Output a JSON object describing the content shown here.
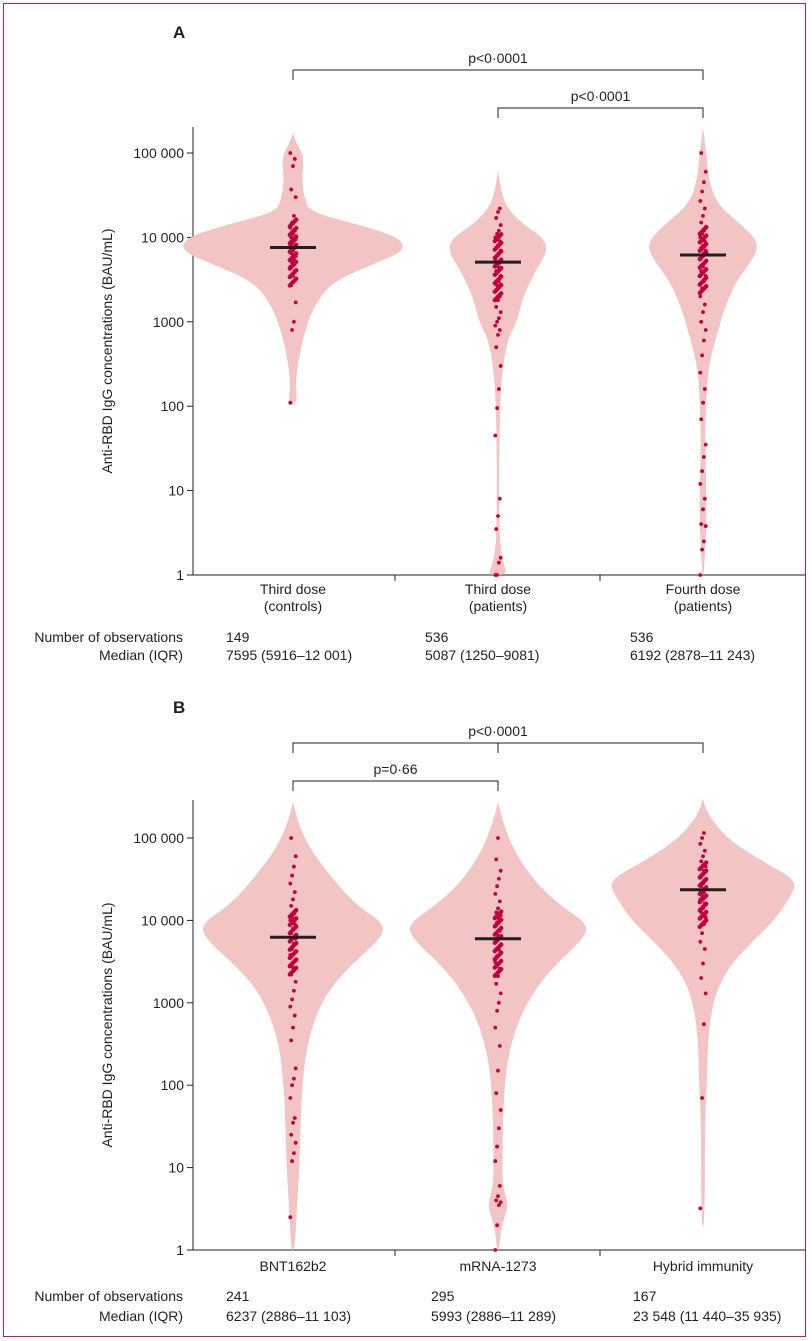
{
  "colors": {
    "violin_fill": "#f2c4c4",
    "dot_color": "#c0003c",
    "median_bar": "#231f20",
    "frame_border": "#c4185a"
  },
  "chart_data": [
    {
      "type": "violin",
      "panel_label": "A",
      "ylabel": "Anti-RBD IgG concentrations (BAU/mL)",
      "y_scale": "log",
      "ylim": [
        1,
        300000
      ],
      "yticks": [
        1,
        10,
        100,
        1000,
        10000,
        100000
      ],
      "ytick_labels": [
        "1",
        "10",
        "100",
        "1000",
        "10 000",
        "100 000"
      ],
      "grid": false,
      "row_labels": [
        "Number of observations",
        "Median (IQR)"
      ],
      "groups": [
        {
          "label_line1": "Third dose",
          "label_line2": "(controls)",
          "n": "149",
          "median_iqr": "7595 (5916–12 001)",
          "median": 7595,
          "violin": [
            [
              110,
              0.04
            ],
            [
              200,
              0.02
            ],
            [
              600,
              0.08
            ],
            [
              1500,
              0.18
            ],
            [
              3000,
              0.35
            ],
            [
              5000,
              0.75
            ],
            [
              7000,
              1.0
            ],
            [
              10000,
              0.95
            ],
            [
              14000,
              0.6
            ],
            [
              20000,
              0.15
            ],
            [
              30000,
              0.1
            ],
            [
              50000,
              0.08
            ],
            [
              90000,
              0.1
            ],
            [
              140000,
              0.02
            ]
          ],
          "points": [
            110,
            800,
            1000,
            1700,
            2700,
            3500,
            4000,
            4500,
            5000,
            5500,
            6000,
            6500,
            7000,
            7500,
            8000,
            8500,
            9000,
            9500,
            10000,
            11000,
            12000,
            13000,
            15000,
            18000,
            30000,
            37000,
            70000,
            85000,
            100000
          ]
        },
        {
          "label_line1": "Third dose",
          "label_line2": "(patients)",
          "n": "536",
          "median_iqr": "5087 (1250–9081)",
          "median": 5087,
          "violin": [
            [
              1,
              0.2
            ],
            [
              1.5,
              0.08
            ],
            [
              3,
              0.03
            ],
            [
              10,
              0.02
            ],
            [
              50,
              0.03
            ],
            [
              200,
              0.06
            ],
            [
              600,
              0.18
            ],
            [
              1000,
              0.38
            ],
            [
              2000,
              0.5
            ],
            [
              4000,
              0.75
            ],
            [
              7000,
              1.0
            ],
            [
              10000,
              0.9
            ],
            [
              15000,
              0.45
            ],
            [
              25000,
              0.12
            ],
            [
              50000,
              0.02
            ]
          ],
          "points": [
            1,
            1,
            1.4,
            1.6,
            3.5,
            5,
            8,
            45,
            95,
            160,
            300,
            500,
            700,
            800,
            900,
            1000,
            1100,
            1300,
            1500,
            1800,
            2000,
            2300,
            2700,
            3000,
            3500,
            4000,
            4500,
            5000,
            5500,
            6000,
            6500,
            7000,
            7500,
            8000,
            9000,
            10000,
            11000,
            12000,
            14000,
            17000,
            20000,
            22000
          ]
        },
        {
          "label_line1": "Fourth dose",
          "label_line2": "(patients)",
          "n": "536",
          "median_iqr": "6192 (2878–11 243)",
          "median": 6192,
          "violin": [
            [
              1,
              0.01
            ],
            [
              2,
              0.04
            ],
            [
              4,
              0.06
            ],
            [
              10,
              0.06
            ],
            [
              30,
              0.04
            ],
            [
              100,
              0.05
            ],
            [
              300,
              0.1
            ],
            [
              700,
              0.25
            ],
            [
              1500,
              0.4
            ],
            [
              3000,
              0.6
            ],
            [
              6000,
              0.95
            ],
            [
              9000,
              1.0
            ],
            [
              14000,
              0.7
            ],
            [
              25000,
              0.25
            ],
            [
              50000,
              0.1
            ],
            [
              100000,
              0.06
            ],
            [
              160000,
              0.02
            ]
          ],
          "points": [
            1,
            2,
            2.5,
            3.8,
            4,
            6,
            8,
            12,
            17,
            25,
            35,
            70,
            110,
            160,
            250,
            400,
            600,
            800,
            1000,
            1300,
            1600,
            2000,
            2500,
            3000,
            3500,
            4000,
            4500,
            5000,
            5500,
            6000,
            6500,
            7000,
            7500,
            8000,
            9000,
            10000,
            11000,
            12000,
            13000,
            15000,
            18000,
            22000,
            27000,
            35000,
            45000,
            60000,
            100000
          ]
        }
      ],
      "comparisons": [
        {
          "text": "p<0·0001",
          "from": 0,
          "to": 2,
          "level": 2
        },
        {
          "text": "p<0·0001",
          "from": 1,
          "to": 2,
          "level": 1
        }
      ]
    },
    {
      "type": "violin",
      "panel_label": "B",
      "ylabel": "Anti-RBD IgG concentrations (BAU/mL)",
      "y_scale": "log",
      "ylim": [
        1,
        300000
      ],
      "yticks": [
        1,
        10,
        100,
        1000,
        10000,
        100000
      ],
      "ytick_labels": [
        "1",
        "10",
        "100",
        "1000",
        "10 000",
        "100 000"
      ],
      "grid": false,
      "row_labels": [
        "Number of observations",
        "Median (IQR)"
      ],
      "groups": [
        {
          "label_line1": "BNT162b2",
          "label_line2": "",
          "n": "241",
          "median_iqr": "6237 (2886–11 103)",
          "median": 6237,
          "violin": [
            [
              1,
              0.02
            ],
            [
              3,
              0.04
            ],
            [
              10,
              0.07
            ],
            [
              30,
              0.08
            ],
            [
              100,
              0.1
            ],
            [
              300,
              0.15
            ],
            [
              700,
              0.25
            ],
            [
              1500,
              0.4
            ],
            [
              3000,
              0.65
            ],
            [
              6000,
              0.95
            ],
            [
              9000,
              1.0
            ],
            [
              15000,
              0.7
            ],
            [
              30000,
              0.45
            ],
            [
              70000,
              0.2
            ],
            [
              130000,
              0.08
            ],
            [
              220000,
              0.02
            ]
          ],
          "points": [
            2.5,
            12,
            15,
            20,
            25,
            35,
            40,
            70,
            100,
            120,
            160,
            350,
            500,
            700,
            900,
            1100,
            1400,
            1800,
            2200,
            2700,
            3200,
            3800,
            4500,
            5200,
            6000,
            7000,
            8000,
            9000,
            10000,
            11000,
            12000,
            13000,
            15000,
            18000,
            22000,
            28000,
            35000,
            45000,
            60000,
            100000
          ]
        },
        {
          "label_line1": "mRNA-1273",
          "label_line2": "",
          "n": "295",
          "median_iqr": "5993 (2886–11 289)",
          "median": 5993,
          "violin": [
            [
              1,
              0.01
            ],
            [
              2,
              0.04
            ],
            [
              3.5,
              0.12
            ],
            [
              6,
              0.05
            ],
            [
              15,
              0.05
            ],
            [
              60,
              0.06
            ],
            [
              200,
              0.1
            ],
            [
              600,
              0.22
            ],
            [
              1500,
              0.42
            ],
            [
              3000,
              0.65
            ],
            [
              6000,
              0.95
            ],
            [
              9000,
              1.0
            ],
            [
              15000,
              0.7
            ],
            [
              30000,
              0.4
            ],
            [
              70000,
              0.18
            ],
            [
              130000,
              0.08
            ],
            [
              220000,
              0.02
            ]
          ],
          "points": [
            1,
            2,
            3.5,
            3.8,
            4,
            4.5,
            6,
            12,
            18,
            30,
            50,
            80,
            150,
            300,
            500,
            800,
            1000,
            1300,
            1700,
            2100,
            2600,
            3100,
            3700,
            4400,
            5000,
            5800,
            6500,
            7500,
            8500,
            9500,
            10500,
            11500,
            12500,
            14000,
            17000,
            21000,
            26000,
            32000,
            40000,
            55000,
            100000
          ]
        },
        {
          "label_line1": "Hybrid immunity",
          "label_line2": "",
          "n": "167",
          "median_iqr": "23 548 (11 440–35 935)",
          "median": 23548,
          "violin": [
            [
              2,
              0.01
            ],
            [
              5,
              0.02
            ],
            [
              30,
              0.02
            ],
            [
              100,
              0.04
            ],
            [
              300,
              0.05
            ],
            [
              700,
              0.08
            ],
            [
              1500,
              0.15
            ],
            [
              3000,
              0.3
            ],
            [
              6000,
              0.55
            ],
            [
              10000,
              0.75
            ],
            [
              18000,
              0.9
            ],
            [
              30000,
              1.0
            ],
            [
              50000,
              0.65
            ],
            [
              90000,
              0.3
            ],
            [
              160000,
              0.1
            ],
            [
              240000,
              0.02
            ]
          ],
          "points": [
            3.2,
            70,
            550,
            1300,
            2000,
            3000,
            4500,
            5500,
            7000,
            9000,
            11000,
            12500,
            14000,
            16000,
            18000,
            20000,
            22000,
            24000,
            26000,
            28000,
            30000,
            33000,
            36000,
            40000,
            45000,
            52000,
            60000,
            70000,
            85000,
            100000,
            115000
          ]
        }
      ],
      "comparisons": [
        {
          "text": "p=0·66",
          "from": 0,
          "to": 1,
          "level": 1
        },
        {
          "text": "p<0·0001",
          "from": 0,
          "to": 2,
          "level": 2
        }
      ]
    }
  ]
}
